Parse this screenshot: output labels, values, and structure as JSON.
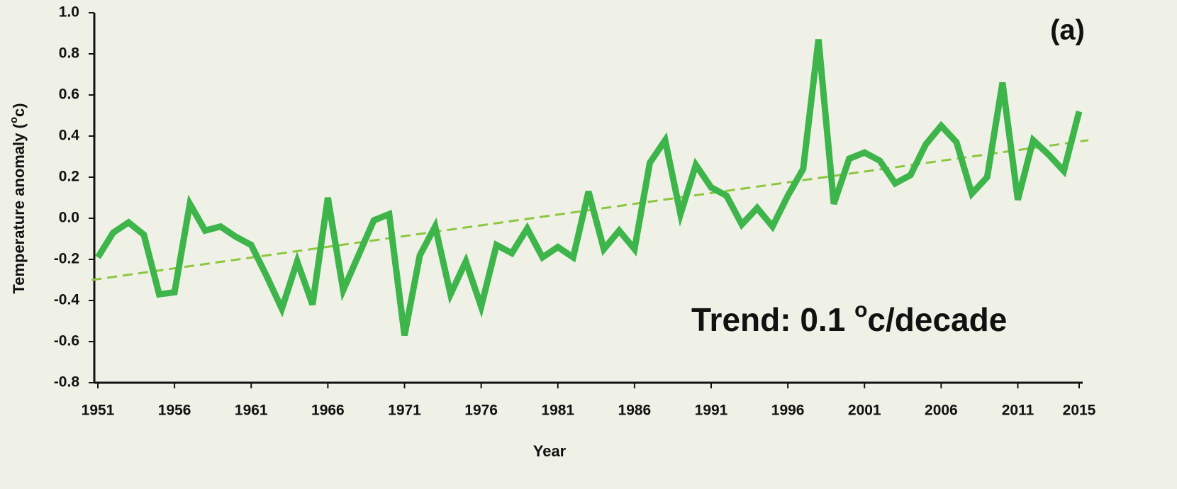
{
  "chart_data": {
    "type": "line",
    "panel_label": "(a)",
    "x_label": "Year",
    "y_label": {
      "text": "Temperature anomaly (",
      "sup": "o",
      "after": "c)"
    },
    "annotation": {
      "text": "Trend: 0.1 ",
      "sup": "o",
      "after": "c/decade"
    },
    "x": [
      1951,
      1952,
      1953,
      1954,
      1955,
      1956,
      1957,
      1958,
      1959,
      1960,
      1961,
      1962,
      1963,
      1964,
      1965,
      1966,
      1967,
      1968,
      1969,
      1970,
      1971,
      1972,
      1973,
      1974,
      1975,
      1976,
      1977,
      1978,
      1979,
      1980,
      1981,
      1982,
      1983,
      1984,
      1985,
      1986,
      1987,
      1988,
      1989,
      1990,
      1991,
      1992,
      1993,
      1994,
      1995,
      1996,
      1997,
      1998,
      1999,
      2000,
      2001,
      2002,
      2003,
      2004,
      2005,
      2006,
      2007,
      2008,
      2009,
      2010,
      2011,
      2012,
      2013,
      2014,
      2015
    ],
    "series": [
      {
        "color": "#3db54a",
        "values": [
          -0.19,
          -0.07,
          -0.02,
          -0.08,
          -0.37,
          -0.36,
          0.07,
          -0.06,
          -0.04,
          -0.09,
          -0.13,
          -0.28,
          -0.44,
          -0.21,
          -0.42,
          0.1,
          -0.35,
          -0.18,
          -0.01,
          0.02,
          -0.57,
          -0.18,
          -0.04,
          -0.37,
          -0.21,
          -0.43,
          -0.13,
          -0.17,
          -0.05,
          -0.19,
          -0.14,
          -0.19,
          0.13,
          -0.15,
          -0.06,
          -0.15,
          0.27,
          0.38,
          0.02,
          0.26,
          0.15,
          0.11,
          -0.03,
          0.05,
          -0.04,
          0.11,
          0.24,
          0.87,
          0.07,
          0.29,
          0.32,
          0.28,
          0.17,
          0.21,
          0.36,
          0.45,
          0.37,
          0.12,
          0.2,
          0.66,
          0.09,
          0.38,
          0.31,
          0.23,
          0.52
        ]
      }
    ],
    "trend": {
      "color": "#8cc63f",
      "x": [
        1950.6,
        2015.6
      ],
      "values": [
        -0.3,
        0.38
      ]
    },
    "xlim": [
      1951,
      2015
    ],
    "xticks": [
      1951,
      1956,
      1961,
      1966,
      1971,
      1976,
      1981,
      1986,
      1991,
      1996,
      2001,
      2006,
      2011,
      2015
    ],
    "ylim": [
      -0.8,
      1.0
    ],
    "yticks": [
      {
        "value": -0.8,
        "label": "-0.8"
      },
      {
        "value": -0.6,
        "label": "-0.6"
      },
      {
        "value": -0.4,
        "label": "-0.4"
      },
      {
        "value": -0.2,
        "label": "-0.2"
      },
      {
        "value": 0,
        "label": "0.0"
      },
      {
        "value": 0.2,
        "label": "0.2"
      },
      {
        "value": 0.4,
        "label": "0.4"
      },
      {
        "value": 0.6,
        "label": "0.6"
      },
      {
        "value": 0.8,
        "label": "0.8"
      },
      {
        "value": 1.0,
        "label": "1.0"
      }
    ]
  }
}
